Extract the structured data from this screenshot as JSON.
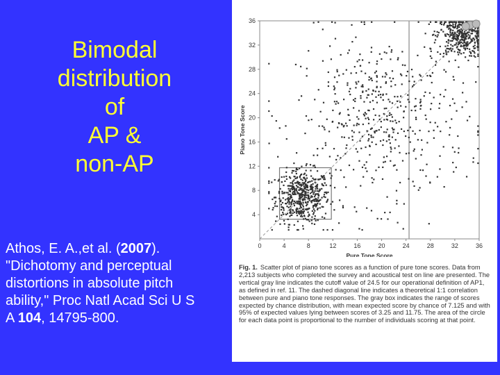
{
  "slide": {
    "title_lines": [
      "Bimodal",
      "distribution",
      "of",
      "AP &",
      "non-AP"
    ],
    "citation": {
      "line1": "Athos, E. A.,et al. (",
      "year": "2007",
      "line1_end": ").",
      "line2": "\"Dichotomy and perceptual",
      "line3": "distortions in absolute pitch",
      "line4": "ability,\" Proc Natl Acad Sci U S",
      "line5_start": "A ",
      "volume": "104",
      "line5_end": ", 14795-800."
    }
  },
  "figure": {
    "caption_label": "Fig. 1.",
    "caption_text": "Scatter plot of piano tone scores as a function of pure tone scores. Data from 2,213 subjects who completed the survey and acoustical test on line are presented. The vertical gray line indicates the cutoff value of 24.5 for our operational definition of AP1, as defined in ref. 11. The dashed diagonal line indicates a theoretical 1:1 correlation between pure and piano tone responses. The gray box indicates the range of scores expected by chance distribution, with mean expected score by chance of 7.125 and with 95% of expected values lying between scores of 3.25 and 11.75. The area of the circle for each data point is proportional to the number of individuals scoring at that point."
  },
  "chart_data": {
    "type": "scatter",
    "title": "",
    "xlabel": "Pure Tone Score",
    "ylabel": "Piano Tone Score",
    "xlim": [
      0,
      36
    ],
    "ylim": [
      0,
      36
    ],
    "xticks": [
      0,
      4,
      8,
      12,
      16,
      20,
      24,
      28,
      32,
      36
    ],
    "yticks": [
      4,
      8,
      12,
      16,
      20,
      24,
      28,
      32,
      36
    ],
    "cutoff_x": 24.5,
    "diagonal": [
      [
        0,
        0
      ],
      [
        36,
        36
      ]
    ],
    "chance_box": {
      "x": [
        3.25,
        11.75
      ],
      "y": [
        3.25,
        11.75
      ]
    },
    "point_color": "#333333",
    "clusters": [
      {
        "name_hint": "non-AP",
        "cx": 7,
        "cy": 7,
        "sx": 2.2,
        "sy": 2.2,
        "n": 520
      },
      {
        "name_hint": "AP",
        "cx": 33,
        "cy": 33.5,
        "sx": 2,
        "sy": 1.8,
        "n": 380
      },
      {
        "name_hint": "spread",
        "cx": 20,
        "cy": 20,
        "sx": 7,
        "sy": 7,
        "n": 520
      }
    ],
    "large_points": [
      [
        34.5,
        35.3
      ],
      [
        35.5,
        35.5
      ],
      [
        33.8,
        35.1
      ]
    ],
    "grid": false
  }
}
